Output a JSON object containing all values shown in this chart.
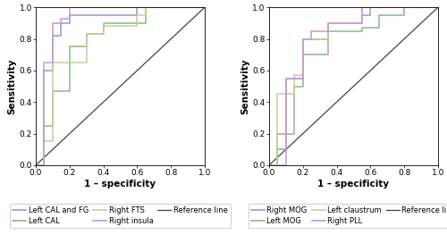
{
  "left_panel": {
    "curves": [
      {
        "label": "Left CAL and FG",
        "color": "#9999cc",
        "x": [
          0.0,
          0.05,
          0.05,
          0.1,
          0.1,
          0.15,
          0.15,
          0.2,
          0.2,
          0.6,
          0.6,
          1.0
        ],
        "y": [
          0.0,
          0.0,
          0.6,
          0.6,
          0.82,
          0.82,
          0.9,
          0.9,
          0.95,
          0.95,
          1.0,
          1.0
        ]
      },
      {
        "label": "Left CAL",
        "color": "#88bb88",
        "x": [
          0.0,
          0.05,
          0.05,
          0.1,
          0.1,
          0.2,
          0.2,
          0.3,
          0.3,
          0.4,
          0.4,
          0.65,
          0.65,
          1.0
        ],
        "y": [
          0.0,
          0.0,
          0.25,
          0.25,
          0.47,
          0.47,
          0.75,
          0.75,
          0.83,
          0.83,
          0.9,
          0.9,
          1.0,
          1.0
        ]
      },
      {
        "label": "Right FTS",
        "color": "#cccc99",
        "x": [
          0.0,
          0.05,
          0.05,
          0.1,
          0.1,
          0.3,
          0.3,
          0.4,
          0.4,
          0.6,
          0.6,
          0.65,
          0.65,
          1.0
        ],
        "y": [
          0.0,
          0.0,
          0.15,
          0.15,
          0.65,
          0.65,
          0.83,
          0.83,
          0.88,
          0.88,
          0.95,
          0.95,
          1.0,
          1.0
        ]
      },
      {
        "label": "Right insula",
        "color": "#cc99cc",
        "x": [
          0.0,
          0.05,
          0.05,
          0.1,
          0.1,
          0.15,
          0.15,
          0.2,
          0.2,
          1.0
        ],
        "y": [
          0.0,
          0.0,
          0.65,
          0.65,
          0.9,
          0.9,
          0.93,
          0.93,
          1.0,
          1.0
        ]
      }
    ],
    "xlabel": "1 – specificity",
    "ylabel": "Sensitivity",
    "xlim": [
      0.0,
      1.0
    ],
    "ylim": [
      0.0,
      1.0
    ],
    "xticks": [
      0.0,
      0.2,
      0.4,
      0.6,
      0.8,
      1.0
    ],
    "yticks": [
      0.0,
      0.2,
      0.4,
      0.6,
      0.8,
      1.0
    ],
    "legend_rows": [
      [
        "Left CAL and FG",
        "Left CAL",
        "Right FTS"
      ],
      [
        "Right insula",
        "Reference line",
        ""
      ]
    ]
  },
  "right_panel": {
    "curves": [
      {
        "label": "Right MOG",
        "color": "#9999cc",
        "x": [
          0.0,
          0.05,
          0.05,
          0.1,
          0.1,
          0.2,
          0.2,
          0.35,
          0.35,
          0.55,
          0.55,
          0.6,
          0.6,
          1.0
        ],
        "y": [
          0.0,
          0.0,
          0.1,
          0.1,
          0.55,
          0.55,
          0.8,
          0.8,
          0.9,
          0.9,
          0.95,
          0.95,
          1.0,
          1.0
        ]
      },
      {
        "label": "Left MOG",
        "color": "#88bb88",
        "x": [
          0.0,
          0.05,
          0.05,
          0.15,
          0.15,
          0.2,
          0.2,
          0.35,
          0.35,
          0.55,
          0.55,
          0.65,
          0.65,
          0.8,
          0.8,
          1.0
        ],
        "y": [
          0.0,
          0.0,
          0.2,
          0.2,
          0.5,
          0.5,
          0.7,
          0.7,
          0.85,
          0.85,
          0.87,
          0.87,
          0.95,
          0.95,
          1.0,
          1.0
        ]
      },
      {
        "label": "Left claustrum",
        "color": "#cccc99",
        "x": [
          0.0,
          0.05,
          0.05,
          0.15,
          0.15,
          0.2,
          0.2,
          0.35,
          0.35,
          0.55,
          0.55,
          1.0
        ],
        "y": [
          0.0,
          0.0,
          0.45,
          0.45,
          0.57,
          0.57,
          0.8,
          0.8,
          0.9,
          0.9,
          1.0,
          1.0
        ]
      },
      {
        "label": "Right PLL",
        "color": "#cc99cc",
        "x": [
          0.0,
          0.1,
          0.1,
          0.2,
          0.2,
          0.25,
          0.25,
          0.35,
          0.35,
          0.55,
          0.55,
          0.6,
          0.6,
          1.0
        ],
        "y": [
          0.0,
          0.0,
          0.55,
          0.55,
          0.8,
          0.8,
          0.85,
          0.85,
          0.9,
          0.9,
          1.0,
          1.0,
          1.0,
          1.0
        ]
      }
    ],
    "xlabel": "1 – specificity",
    "ylabel": "Sensitivity",
    "xlim": [
      0.0,
      1.0
    ],
    "ylim": [
      0.0,
      1.0
    ],
    "xticks": [
      0.0,
      0.2,
      0.4,
      0.6,
      0.8,
      1.0
    ],
    "yticks": [
      0.0,
      0.2,
      0.4,
      0.6,
      0.8,
      1.0
    ],
    "legend_rows": [
      [
        "Right MOG",
        "Left MOG",
        "Left claustrum"
      ],
      [
        "Right PLL",
        "Reference line",
        ""
      ]
    ]
  },
  "reference_color": "#444444",
  "background_color": "#ffffff",
  "tick_fontsize": 6.5,
  "label_fontsize": 7.5,
  "legend_fontsize": 6.0
}
